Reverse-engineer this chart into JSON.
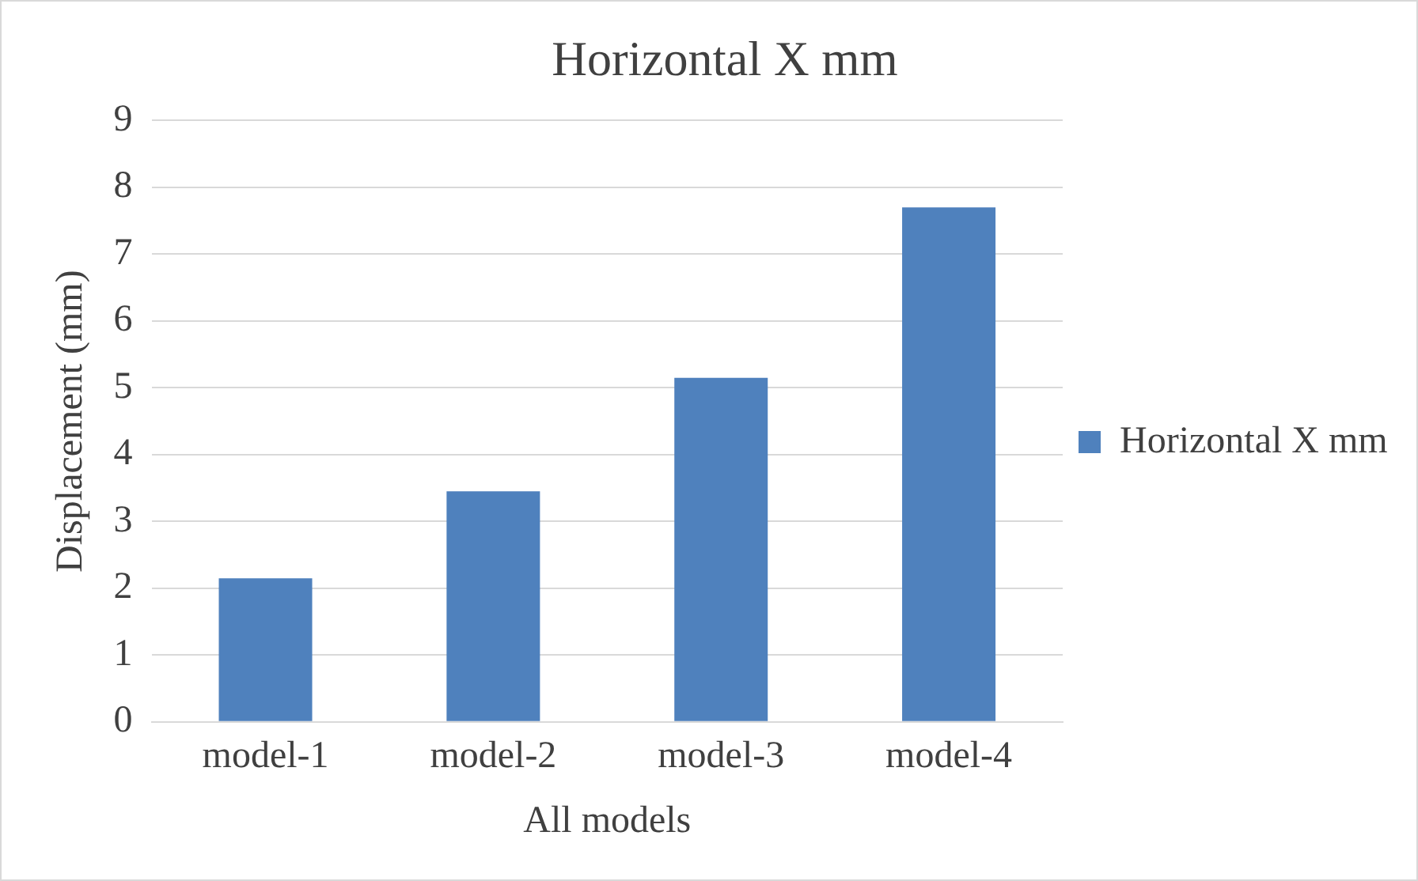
{
  "chart_data": {
    "type": "bar",
    "title": "Horizontal X mm",
    "xlabel": "All models",
    "ylabel": "Displacement (mm)",
    "categories": [
      "model-1",
      "model-2",
      "model-3",
      "model-4"
    ],
    "series": [
      {
        "name": "Horizontal X mm",
        "color": "#4f81bd",
        "values": [
          2.15,
          3.45,
          5.15,
          7.7
        ]
      }
    ],
    "ylim": [
      0,
      9
    ],
    "yticks": [
      0,
      1,
      2,
      3,
      4,
      5,
      6,
      7,
      8,
      9
    ],
    "grid": "y",
    "legend": "right"
  }
}
